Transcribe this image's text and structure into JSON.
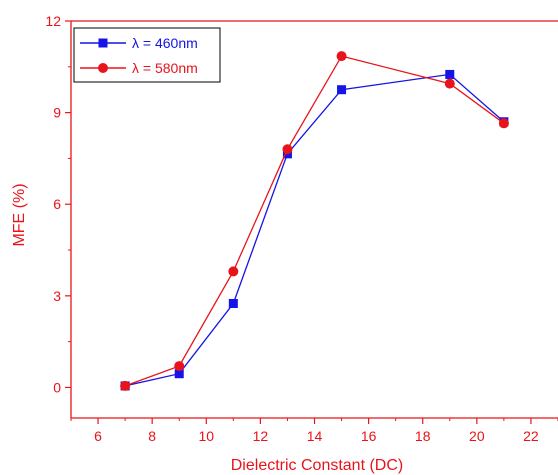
{
  "chart_data": {
    "type": "line",
    "xlabel": "Dielectric Constant (DC)",
    "ylabel": "MFE (%)",
    "xlim": [
      5,
      23
    ],
    "ylim": [
      -1,
      12
    ],
    "xticks": [
      6,
      8,
      10,
      12,
      14,
      16,
      18,
      20,
      22
    ],
    "yticks": [
      0,
      3,
      6,
      9,
      12
    ],
    "grid": false,
    "legend_position": "top-left",
    "axis_color": "#e8141b",
    "series": [
      {
        "name": "λ = 460nm",
        "color": "#1414e6",
        "marker": "square",
        "x": [
          7,
          9,
          11,
          13,
          15,
          19,
          21
        ],
        "y": [
          0.05,
          0.45,
          2.75,
          7.65,
          9.75,
          10.25,
          8.7
        ]
      },
      {
        "name": "λ = 580nm",
        "color": "#e8141b",
        "marker": "circle",
        "x": [
          7,
          9,
          11,
          13,
          15,
          19,
          21
        ],
        "y": [
          0.05,
          0.7,
          3.8,
          7.8,
          10.85,
          9.95,
          8.65
        ]
      }
    ]
  }
}
